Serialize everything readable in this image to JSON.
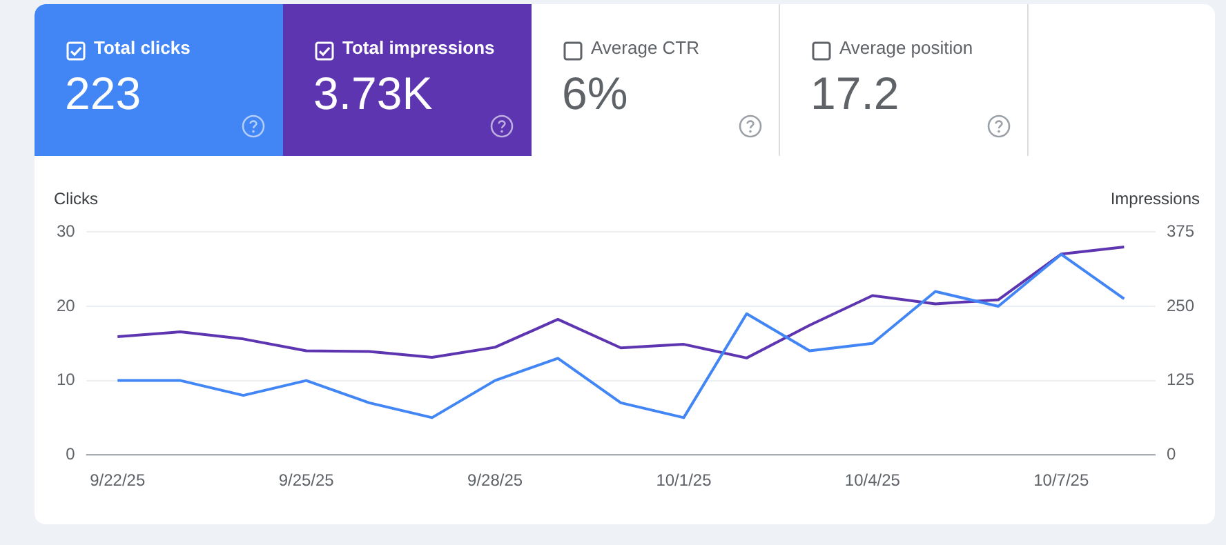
{
  "chart_data": [
    {
      "type": "other",
      "annotations": [
        "Total clicks",
        "223",
        "Total impressions",
        "3.73K",
        "Average CTR",
        "6%",
        "Average position",
        "17.2"
      ]
    },
    {
      "type": "line",
      "ylabel": "Clicks",
      "y2label": "Impressions",
      "categories": [
        "9/22/25",
        null,
        null,
        "9/25/25",
        null,
        null,
        "9/28/25",
        null,
        null,
        "10/1/25",
        null,
        null,
        "10/4/25",
        null,
        null,
        "10/7/25",
        null
      ],
      "series": [
        {
          "color": "#4285f4",
          "values": [
            10,
            10,
            8,
            10,
            7,
            5,
            10,
            13,
            7,
            5,
            19,
            14,
            15,
            22,
            20,
            27,
            21
          ]
        },
        {
          "color": "#5e35b1",
          "axis": "y2",
          "values": [
            199,
            207,
            195,
            175,
            174,
            164,
            181,
            228,
            180,
            186,
            163,
            218,
            268,
            254,
            261,
            338,
            350
          ]
        }
      ],
      "ylim": [
        0,
        30
      ],
      "yticks": [
        0,
        10,
        20,
        30
      ],
      "y2lim": [
        0,
        375
      ],
      "y2ticks": [
        0,
        125,
        250,
        375
      ],
      "grid": "y",
      "legend": false,
      "marker": "none",
      "line_style": "solid"
    }
  ]
}
